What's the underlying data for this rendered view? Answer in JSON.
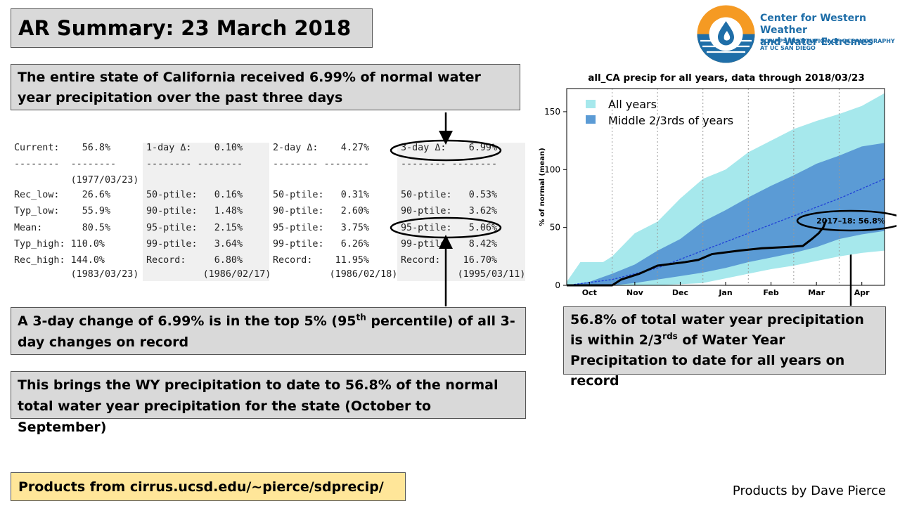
{
  "title": "AR Summary: 23 March 2018",
  "callouts": {
    "state": "The entire state of California received 6.99% of normal water year precipitation over the past three days",
    "change_prefix": "A 3-day change of 6.99% is in the top 5% (95",
    "change_sup": "th",
    "change_suffix": " percentile) of all 3-day changes on record",
    "wy": "This brings the WY precipitation to date to 56.8% of the normal total water year precipitation for the state (October to September)",
    "total_prefix": "56.8% of total water year precipitation is within 2/3",
    "total_sup": "rds",
    "total_suffix": " of Water Year Precipitation to date for all years on record"
  },
  "products_link": "Products from cirrus.ucsd.edu/~pierce/sdprecip/",
  "credit": "Products by Dave Pierce",
  "logo": {
    "line1": "Center for Western Weather",
    "line2": "and Water Extremes",
    "line3": "SCRIPPS INSTITUTION OF OCEANOGRAPHY",
    "line4": "AT UC SAN DIEGO"
  },
  "table": {
    "col1": [
      "Current:    56.8%",
      "--------  --------",
      "          (1977/03/23)",
      "Rec_low:    26.6%",
      "Typ_low:    55.9%",
      "Mean:       80.5%",
      "Typ_high: 110.0%",
      "Rec_high: 144.0%",
      "          (1983/03/23)"
    ],
    "col2": [
      "1-day Δ:    0.10%",
      "-------- --------",
      "",
      "50-ptile:   0.16%",
      "90-ptile:   1.48%",
      "95-ptile:   2.15%",
      "99-ptile:   3.64%",
      "Record:     6.80%",
      "          (1986/02/17)"
    ],
    "col3": [
      "2-day Δ:    4.27%",
      "-------- --------",
      "",
      "50-ptile:   0.31%",
      "90-ptile:   2.60%",
      "95-ptile:   3.75%",
      "99-ptile:   6.26%",
      "Record:    11.95%",
      "          (1986/02/18)"
    ],
    "col4": [
      "3-day Δ:    6.99%",
      "-------- --------",
      "",
      "50-ptile:   0.53%",
      "90-ptile:   3.62%",
      "95-ptile:   5.06%",
      "99-ptile:   8.42%",
      "Record:    16.70%",
      "          (1995/03/11)"
    ]
  },
  "chart_data": {
    "type": "area",
    "title": "all_CA precip for all years, data through 2018/03/23",
    "ylabel": "% of normal (mean)",
    "xlabel": "",
    "ylim": [
      0,
      170
    ],
    "xlim": [
      0,
      7
    ],
    "yticks": [
      0,
      50,
      100,
      150
    ],
    "months": [
      "Oct",
      "Nov",
      "Dec",
      "Jan",
      "Feb",
      "Mar",
      "Apr"
    ],
    "legend": [
      "All years",
      "Middle 2/3rds of years"
    ],
    "legend_position": "top-left",
    "annotation": "2017–18: 56.8%",
    "colors": {
      "all_years": "#a6e8ec",
      "middle": "#5b9bd5",
      "mean": "#1f3fd6",
      "current": "#000000"
    },
    "series": [
      {
        "name": "All years",
        "x": [
          0,
          0.3,
          0.5,
          0.8,
          1.0,
          1.5,
          2.0,
          2.5,
          3.0,
          3.5,
          4.0,
          4.5,
          5.0,
          5.5,
          6.0,
          6.5,
          7.0
        ],
        "upper": [
          3,
          20,
          20,
          20,
          25,
          45,
          55,
          75,
          92,
          100,
          115,
          125,
          135,
          142,
          148,
          155,
          166
        ],
        "lower": [
          0,
          0,
          0,
          0,
          0,
          0,
          0,
          1,
          2,
          6,
          10,
          14,
          17,
          21,
          25,
          28,
          30
        ]
      },
      {
        "name": "Middle 2/3rds of years",
        "x": [
          0,
          0.5,
          1.0,
          1.5,
          2.0,
          2.5,
          3.0,
          3.5,
          4.0,
          4.5,
          5.0,
          5.5,
          6.0,
          6.5,
          7.0
        ],
        "upper": [
          0,
          3,
          10,
          18,
          30,
          40,
          55,
          65,
          76,
          86,
          95,
          105,
          112,
          120,
          123
        ],
        "lower": [
          0,
          0,
          0,
          2,
          5,
          8,
          11,
          15,
          20,
          24,
          28,
          33,
          40,
          44,
          47
        ]
      },
      {
        "x": [
          0,
          1,
          2,
          3,
          4,
          5,
          6,
          7
        ],
        "values": [
          0,
          5,
          15,
          30,
          45,
          60,
          75,
          92
        ]
      },
      {
        "x": [
          0,
          0.5,
          1.0,
          1.2,
          1.6,
          2.0,
          2.6,
          2.9,
          3.2,
          3.8,
          4.3,
          4.8,
          5.2,
          5.4,
          5.55,
          5.65,
          5.72
        ],
        "values": [
          0,
          0,
          0,
          5,
          10,
          17,
          20,
          22,
          27,
          30,
          32,
          33,
          34,
          40,
          45,
          50,
          56.8
        ]
      }
    ]
  }
}
